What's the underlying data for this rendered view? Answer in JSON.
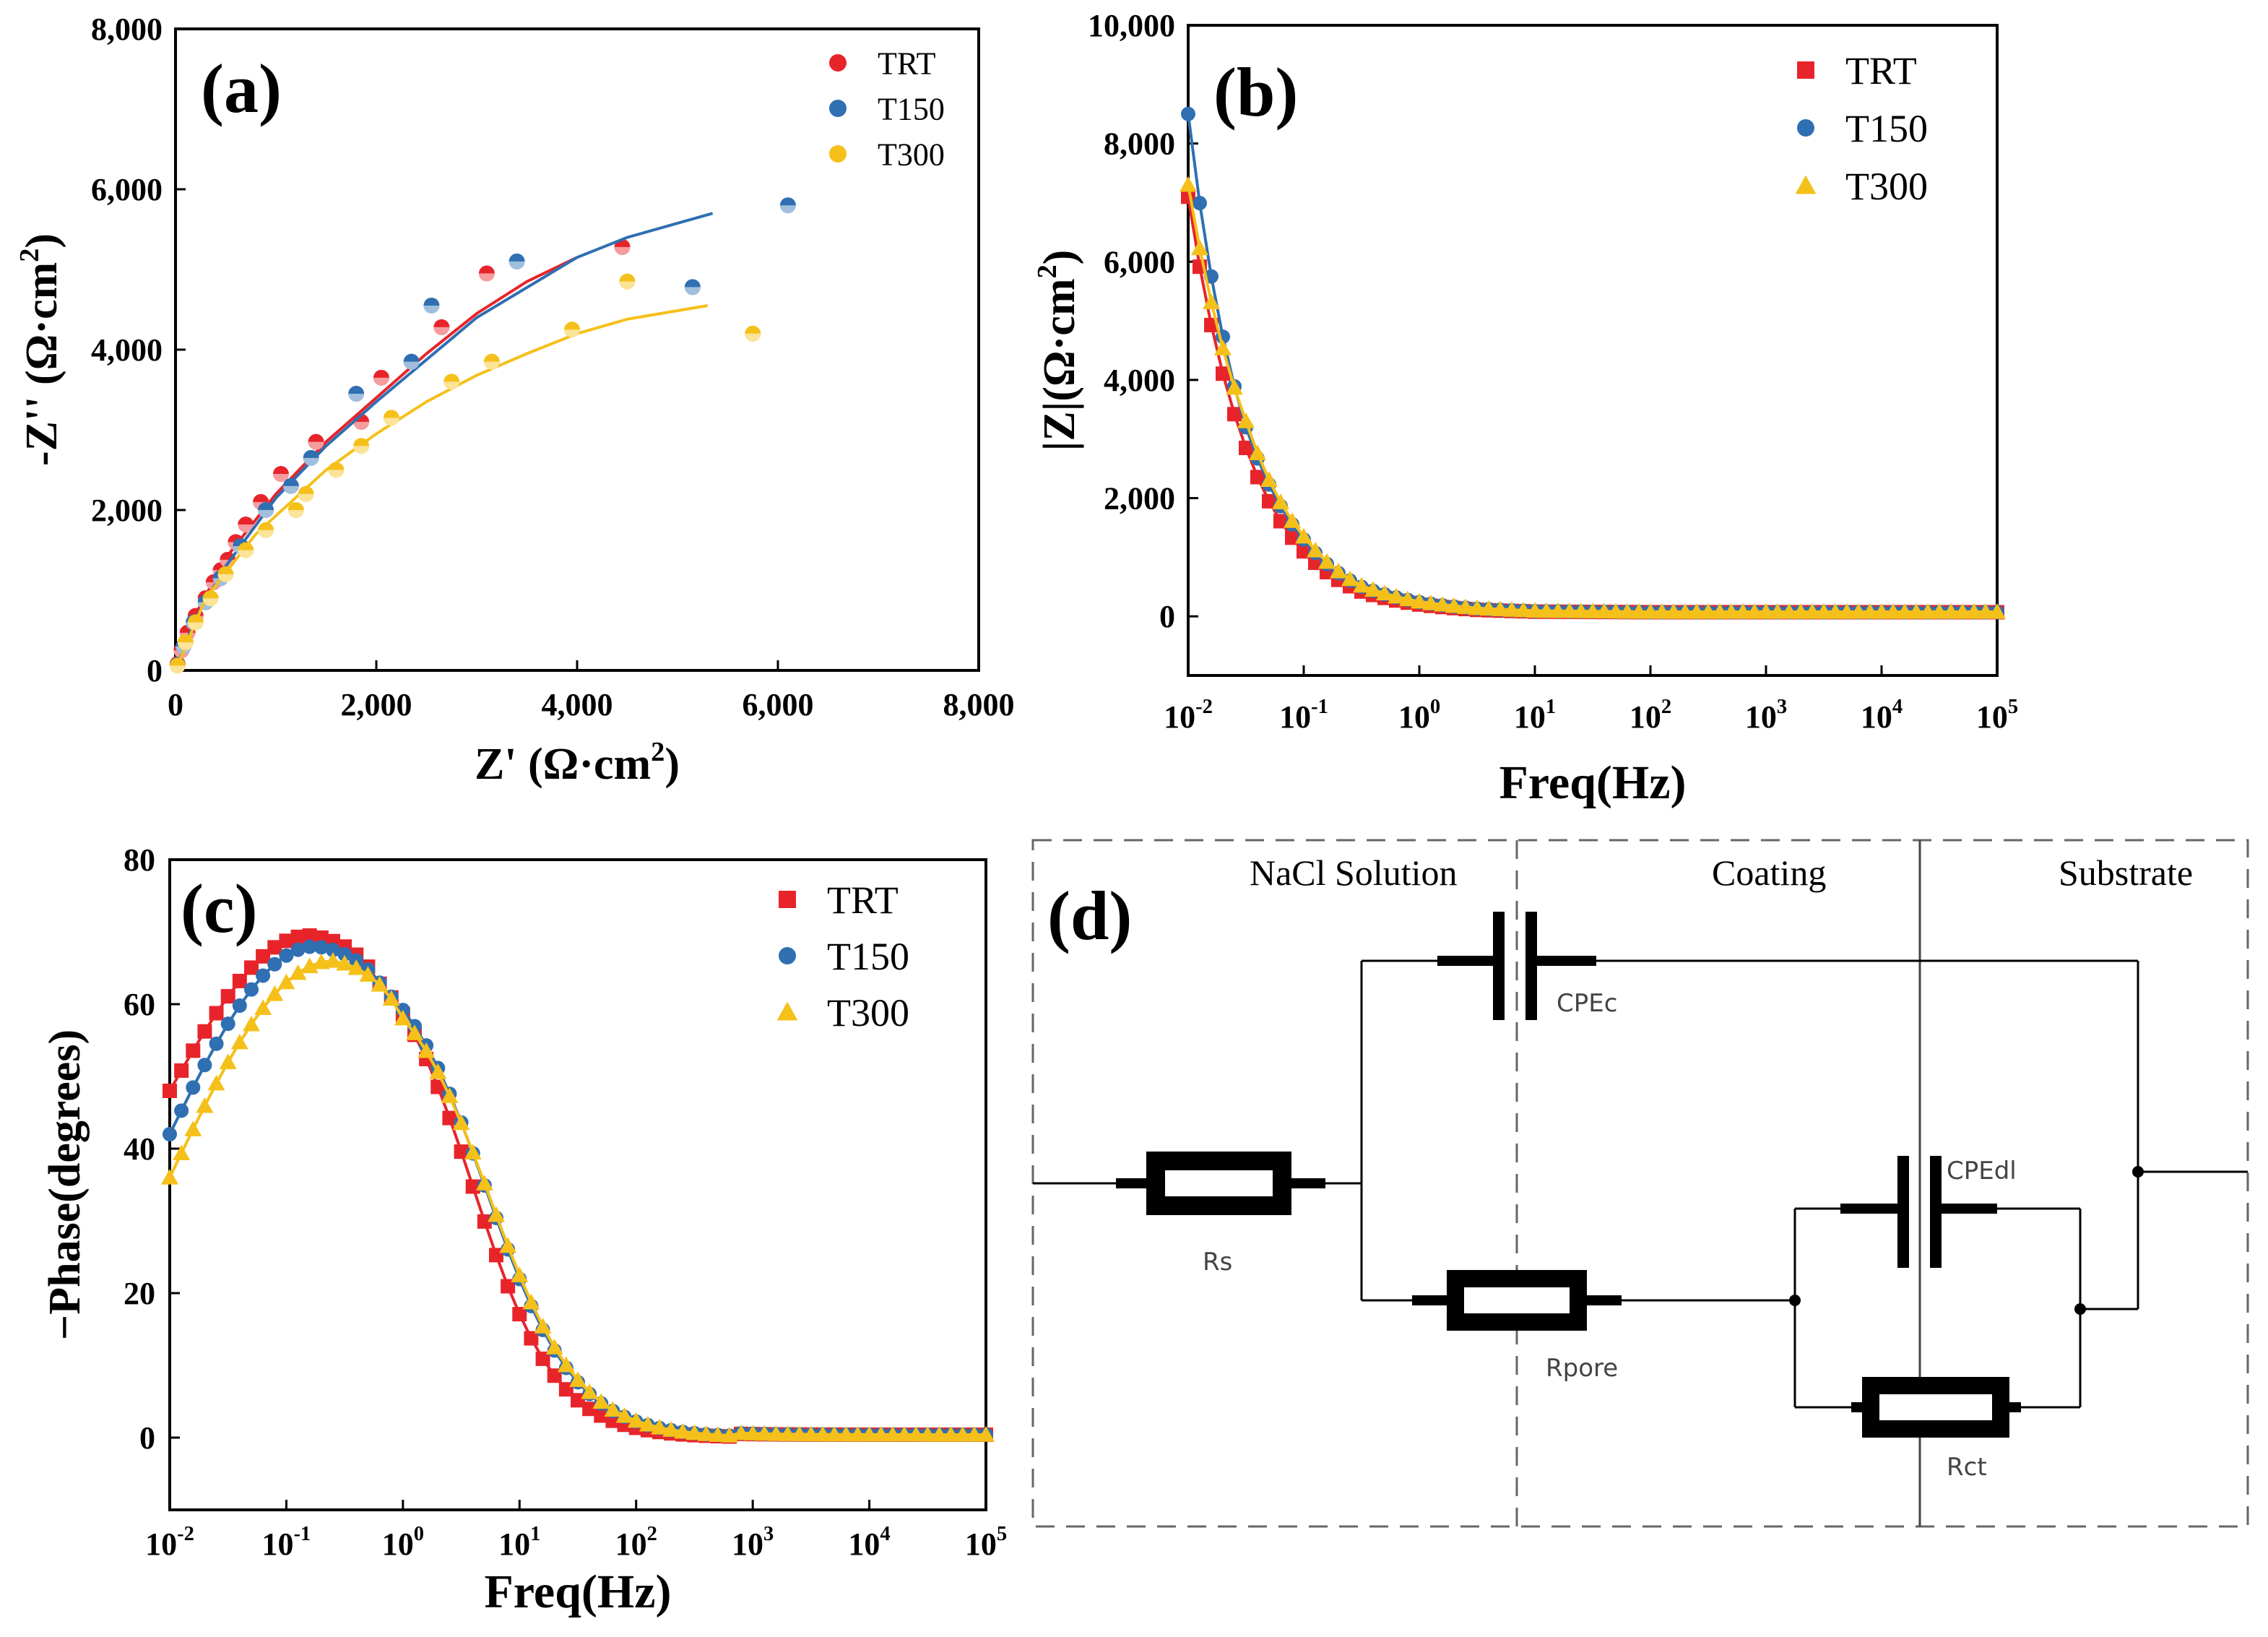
{
  "colors": {
    "TRT": "#e8242b",
    "T150": "#2f6fb2",
    "T300": "#f5c01a"
  },
  "chart_data": [
    {
      "panel": "(a)",
      "type": "scatter",
      "title": "",
      "xlabel": "Z' (Ω·cm",
      "ylabel": "-Z'' (Ω·cm",
      "unit_sup": "2",
      "unit_close": ")",
      "xlim": [
        0,
        8000
      ],
      "ylim": [
        0,
        8000
      ],
      "xticks": [
        0,
        2000,
        4000,
        6000,
        8000
      ],
      "yticks": [
        0,
        2000,
        4000,
        6000,
        8000
      ],
      "xtick_labels": [
        "0",
        "2,000",
        "4,000",
        "6,000",
        "8,000"
      ],
      "ytick_labels": [
        "0",
        "2,000",
        "4,000",
        "6,000",
        "8,000"
      ],
      "legend_position": "top-right",
      "series": [
        {
          "name": "TRT",
          "marker": "circle",
          "points": [
            [
              20,
              80
            ],
            [
              60,
              250
            ],
            [
              120,
              470
            ],
            [
              200,
              680
            ],
            [
              300,
              900
            ],
            [
              380,
              1100
            ],
            [
              450,
              1250
            ],
            [
              520,
              1380
            ],
            [
              600,
              1600
            ],
            [
              700,
              1820
            ],
            [
              850,
              2100
            ],
            [
              1050,
              2450
            ],
            [
              1400,
              2850
            ],
            [
              1850,
              3100
            ],
            [
              2050,
              3650
            ],
            [
              2650,
              4280
            ],
            [
              3100,
              4950
            ],
            [
              4450,
              5280
            ]
          ],
          "fit": [
            [
              0,
              0
            ],
            [
              200,
              700
            ],
            [
              500,
              1400
            ],
            [
              1000,
              2200
            ],
            [
              1500,
              2850
            ],
            [
              2000,
              3400
            ],
            [
              2500,
              3950
            ],
            [
              3000,
              4450
            ],
            [
              3500,
              4850
            ],
            [
              4000,
              5150
            ]
          ]
        },
        {
          "name": "T150",
          "marker": "circle",
          "points": [
            [
              20,
              70
            ],
            [
              80,
              300
            ],
            [
              180,
              600
            ],
            [
              300,
              850
            ],
            [
              450,
              1150
            ],
            [
              650,
              1550
            ],
            [
              900,
              2000
            ],
            [
              1150,
              2300
            ],
            [
              1350,
              2650
            ],
            [
              1800,
              3450
            ],
            [
              2350,
              3850
            ],
            [
              2550,
              4550
            ],
            [
              3400,
              5100
            ],
            [
              5150,
              4780
            ],
            [
              6100,
              5800
            ]
          ],
          "fit": [
            [
              0,
              0
            ],
            [
              200,
              650
            ],
            [
              500,
              1300
            ],
            [
              1000,
              2150
            ],
            [
              1500,
              2800
            ],
            [
              2000,
              3350
            ],
            [
              3000,
              4400
            ],
            [
              4000,
              5150
            ],
            [
              4500,
              5400
            ],
            [
              5350,
              5700
            ]
          ]
        },
        {
          "name": "T300",
          "marker": "circle",
          "points": [
            [
              20,
              60
            ],
            [
              100,
              350
            ],
            [
              200,
              600
            ],
            [
              350,
              900
            ],
            [
              500,
              1200
            ],
            [
              700,
              1500
            ],
            [
              900,
              1750
            ],
            [
              1200,
              2000
            ],
            [
              1300,
              2200
            ],
            [
              1600,
              2500
            ],
            [
              1850,
              2800
            ],
            [
              2150,
              3150
            ],
            [
              2750,
              3600
            ],
            [
              3150,
              3850
            ],
            [
              3950,
              4250
            ],
            [
              4500,
              4850
            ],
            [
              5750,
              4200
            ]
          ],
          "fit": [
            [
              0,
              0
            ],
            [
              300,
              900
            ],
            [
              800,
              1700
            ],
            [
              1500,
              2500
            ],
            [
              2000,
              2950
            ],
            [
              2500,
              3350
            ],
            [
              3000,
              3680
            ],
            [
              3500,
              3950
            ],
            [
              4000,
              4200
            ],
            [
              4500,
              4380
            ],
            [
              5300,
              4550
            ]
          ]
        }
      ]
    },
    {
      "panel": "(b)",
      "type": "scatter",
      "title": "",
      "xlabel": "Freq(Hz)",
      "ylabel": "|Z|(Ω·cm",
      "unit_sup": "2",
      "unit_close": ")",
      "xscale": "log",
      "xlim_exp": [
        -2,
        5
      ],
      "ylim": [
        -1000,
        10000
      ],
      "xtick_exps": [
        "-2",
        "-1",
        "0",
        "1",
        "2",
        "3",
        "4",
        "5"
      ],
      "yticks": [
        0,
        2000,
        4000,
        6000,
        8000,
        10000
      ],
      "ytick_labels": [
        "0",
        "2,000",
        "4,000",
        "6,000",
        "8,000",
        "10,000"
      ],
      "tick_base": "10",
      "legend_position": "top-right",
      "series": [
        {
          "name": "TRT",
          "marker": "square",
          "decades": {
            "-2": 7100,
            "-1.5": 2850,
            "-1": 1100,
            "-0.5": 420,
            "0": 200,
            "0.5": 110,
            "1": 80,
            "2": 70,
            "3": 70,
            "4": 70,
            "5": 70
          }
        },
        {
          "name": "T150",
          "marker": "circle",
          "decades": {
            "-2": 8500,
            "-1.5": 3200,
            "-1": 1300,
            "-0.5": 500,
            "0": 240,
            "0.5": 130,
            "1": 90,
            "2": 70,
            "3": 70,
            "4": 70,
            "5": 70
          }
        },
        {
          "name": "T300",
          "marker": "triangle",
          "decades": {
            "-2": 7300,
            "-1.5": 3300,
            "-1": 1350,
            "-0.5": 520,
            "0": 250,
            "0.5": 140,
            "1": 95,
            "2": 75,
            "3": 75,
            "4": 75,
            "5": 75
          }
        }
      ]
    },
    {
      "panel": "(c)",
      "type": "scatter",
      "title": "",
      "xlabel": "Freq(Hz)",
      "ylabel": "−Phase(degrees)",
      "xscale": "log",
      "xlim_exp": [
        -2,
        5
      ],
      "ylim": [
        -10,
        80
      ],
      "xtick_exps": [
        "-2",
        "-1",
        "0",
        "1",
        "2",
        "3",
        "4",
        "5"
      ],
      "yticks": [
        0,
        20,
        40,
        60,
        80
      ],
      "ytick_labels": [
        "0",
        "20",
        "40",
        "60",
        "80"
      ],
      "tick_base": "10",
      "legend_position": "top-right",
      "series": [
        {
          "name": "TRT",
          "marker": "square",
          "peak_exp": -0.8,
          "peak": 69.5,
          "start": 48,
          "half_exp": 0.6,
          "width": 0.85
        },
        {
          "name": "T150",
          "marker": "circle",
          "peak_exp": -0.75,
          "peak": 68,
          "start": 42,
          "half_exp": 0.72,
          "width": 0.9
        },
        {
          "name": "T300",
          "marker": "triangle",
          "peak_exp": -0.6,
          "peak": 66,
          "start": 36,
          "half_exp": 0.75,
          "width": 0.9
        }
      ]
    }
  ],
  "panel_d": {
    "letter": "(d)",
    "regions": [
      "NaCl Solution",
      "Coating",
      "Substrate"
    ],
    "components": {
      "rs": "Rs",
      "cpec": "CPEc",
      "rpore": "Rpore",
      "cpedl": "CPEdl",
      "rct": "Rct"
    }
  }
}
